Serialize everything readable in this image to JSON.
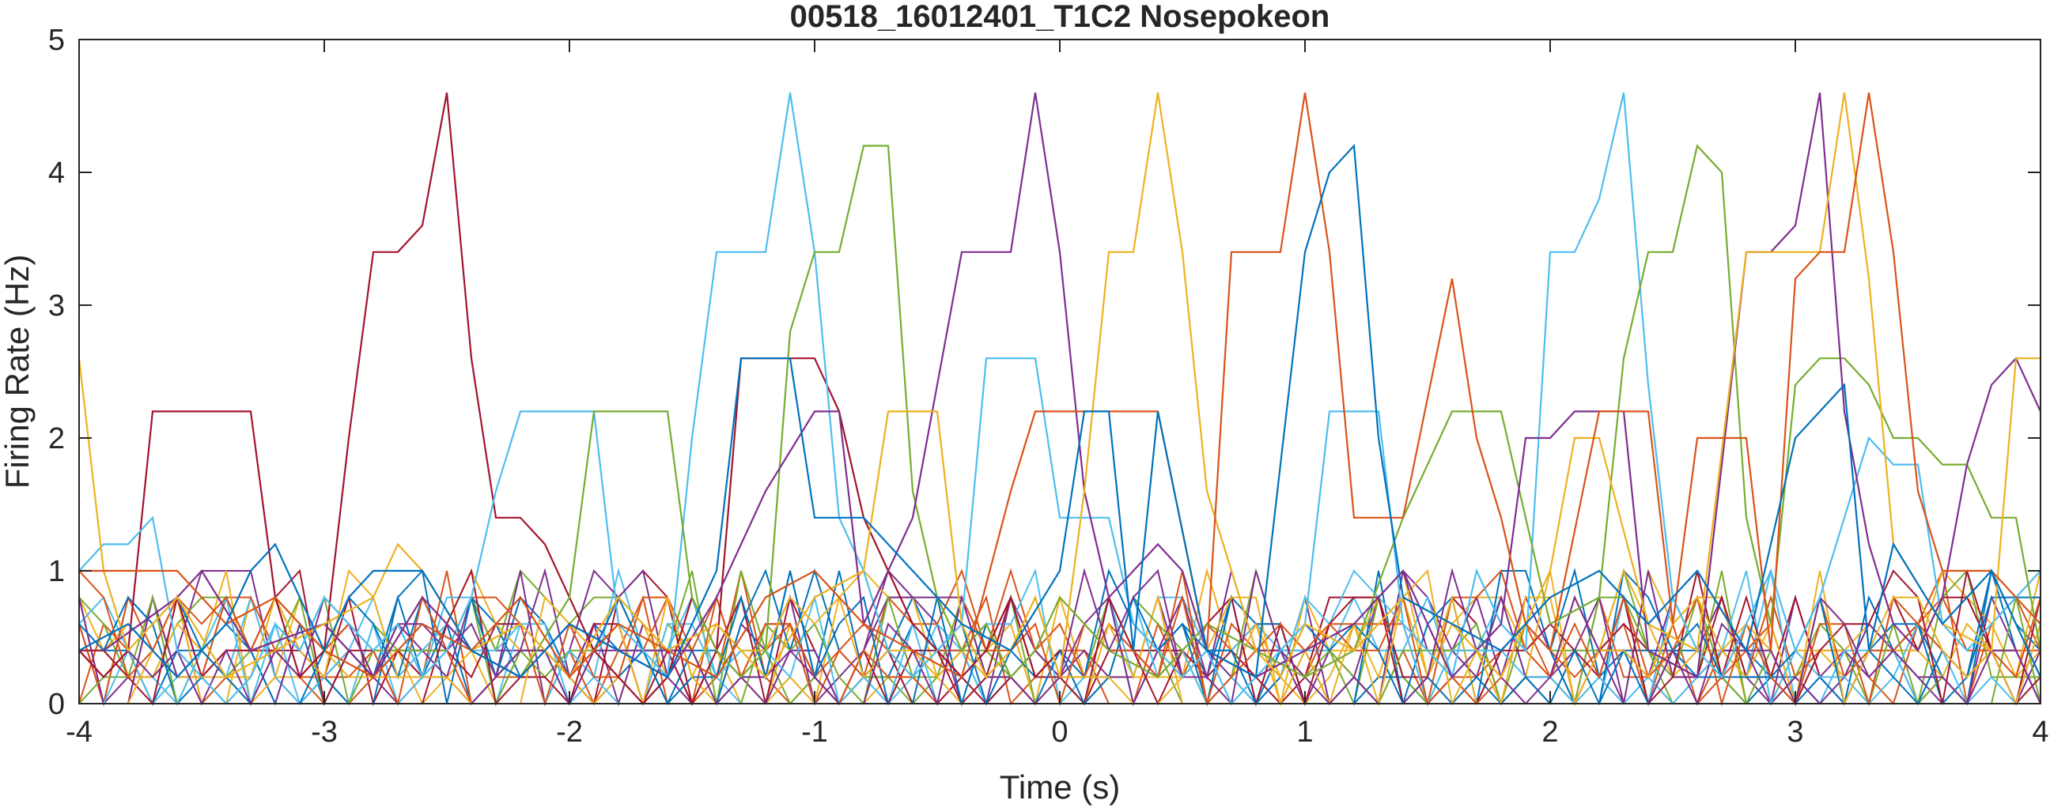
{
  "chart_data": {
    "type": "line",
    "title": "00518_16012401_T1C2 Nosepokeon",
    "xlabel": "Time (s)",
    "ylabel": "Firing Rate (Hz)",
    "xlim": [
      -4,
      4
    ],
    "ylim": [
      0,
      5
    ],
    "xticks": [
      "-4",
      "-3",
      "-2",
      "-1",
      "0",
      "1",
      "2",
      "3",
      "4"
    ],
    "yticks": [
      "0",
      "1",
      "2",
      "3",
      "4",
      "5"
    ],
    "grid": false,
    "legend": "none",
    "colors": [
      "#0072BD",
      "#D95319",
      "#EDB120",
      "#7E2F8E",
      "#77AC30",
      "#4DBEEE",
      "#A2142F"
    ],
    "series": [
      {
        "color": "#A2142F",
        "x": [
          -4,
          -3.9,
          -3.8,
          -3.7,
          -3.6,
          -3.5,
          -3.4,
          -3.3,
          -3.2,
          -3.1,
          -3.0,
          -2.9,
          -2.8,
          -2.7,
          -2.6,
          -2.5,
          -2.4,
          -2.3,
          -2.2,
          -2.1,
          -2.0,
          -1.9,
          -1.8,
          -1.7,
          -1.6,
          -1.5,
          -1.4,
          -1.3,
          -1.2,
          -1.1,
          -1.0,
          -0.9,
          -0.8,
          -0.7,
          -0.6,
          -0.5,
          -0.4,
          -0.3,
          -0.2,
          -0.1,
          0.0
        ],
        "y": [
          0.4,
          0.2,
          0.4,
          2.2,
          2.2,
          2.2,
          2.2,
          2.2,
          0.8,
          0.2,
          0.4,
          2.0,
          3.4,
          3.4,
          3.6,
          4.6,
          2.6,
          1.4,
          1.4,
          1.2,
          0.8,
          0.4,
          0.2,
          0.0,
          0.2,
          0.8,
          0.4,
          2.6,
          2.6,
          2.6,
          2.6,
          2.2,
          1.4,
          1.0,
          0.6,
          0.4,
          0.2,
          0.4,
          0.8,
          0.2,
          0.4
        ]
      },
      {
        "color": "#4DBEEE",
        "x": [
          -4,
          -3.9,
          -3.8,
          -3.7,
          -3.6,
          -3.5,
          -3.4,
          -3.3,
          -3.2,
          -3.1,
          -3.0,
          -2.9,
          -2.8,
          -2.7,
          -2.6,
          -2.5,
          -2.4,
          -2.3,
          -2.2,
          -2.1,
          -2.0,
          -1.9,
          -1.8,
          -1.7,
          -1.6,
          -1.5,
          -1.4,
          -1.3,
          -1.2,
          -1.1,
          -1.0,
          -0.9,
          -0.8,
          -0.7,
          -0.6,
          -0.5,
          -0.4,
          -0.3,
          -0.2,
          -0.1,
          0.0,
          0.1,
          0.2,
          0.3,
          0.4,
          0.5,
          0.6,
          0.7,
          0.8,
          0.9,
          1.0,
          1.1,
          1.2,
          1.3,
          1.4,
          1.5,
          1.6,
          1.7,
          1.8,
          1.9,
          2.0,
          2.1,
          2.2,
          2.3,
          2.4,
          2.5,
          2.6,
          2.7,
          2.8,
          2.9,
          3.0,
          3.1,
          3.2,
          3.3,
          3.4,
          3.5,
          3.6,
          3.7,
          3.8,
          3.9,
          4.0
        ],
        "y": [
          1.0,
          1.2,
          1.2,
          1.4,
          0.4,
          0.2,
          0.0,
          0.2,
          0.6,
          0.4,
          0.8,
          0.6,
          0.4,
          0.6,
          0.2,
          0.4,
          0.8,
          1.6,
          2.2,
          2.2,
          2.2,
          2.2,
          0.6,
          0.4,
          0.2,
          2.0,
          3.4,
          3.4,
          3.4,
          4.6,
          3.4,
          1.4,
          1.0,
          0.4,
          0.2,
          0.4,
          0.6,
          2.6,
          2.6,
          2.6,
          1.4,
          1.4,
          1.4,
          0.6,
          0.4,
          0.2,
          0.4,
          0.0,
          0.2,
          0.4,
          0.6,
          2.2,
          2.2,
          2.2,
          0.6,
          0.4,
          0.2,
          1.0,
          0.6,
          0.4,
          3.4,
          3.4,
          3.8,
          4.6,
          2.4,
          0.8,
          0.4,
          0.2,
          0.6,
          1.0,
          0.4,
          0.8,
          1.4,
          2.0,
          1.8,
          1.8,
          0.6,
          0.4,
          0.6,
          0.8,
          1.0
        ]
      },
      {
        "color": "#77AC30",
        "x": [
          -2.4,
          -2.2,
          -2.0,
          -1.9,
          -1.8,
          -1.7,
          -1.6,
          -1.5,
          -1.4,
          -1.3,
          -1.2,
          -1.1,
          -1.0,
          -0.9,
          -0.8,
          -0.7,
          -0.6,
          -0.5,
          -0.4,
          -0.3,
          -0.2,
          -0.1,
          0.0,
          0.2,
          0.4,
          0.6,
          0.8,
          1.0,
          1.2,
          1.4,
          1.6,
          1.8,
          2.0,
          2.2,
          2.3,
          2.4,
          2.5,
          2.6,
          2.7,
          2.8,
          2.9,
          3.0,
          3.1,
          3.2,
          3.3,
          3.4,
          3.5,
          3.6,
          3.7,
          3.8,
          3.9,
          4.0
        ],
        "y": [
          0.4,
          0.2,
          0.8,
          2.2,
          2.2,
          2.2,
          2.2,
          0.8,
          0.4,
          0.2,
          0.4,
          2.8,
          3.4,
          3.4,
          4.2,
          4.2,
          1.6,
          0.8,
          0.4,
          0.6,
          0.2,
          0.4,
          0.8,
          0.4,
          0.2,
          0.6,
          0.4,
          0.2,
          0.4,
          1.4,
          2.2,
          2.2,
          0.6,
          0.8,
          2.6,
          3.4,
          3.4,
          4.2,
          4.0,
          1.4,
          0.6,
          2.4,
          2.6,
          2.6,
          2.4,
          2.0,
          2.0,
          1.8,
          1.8,
          1.4,
          1.4,
          0.4
        ]
      },
      {
        "color": "#7E2F8E",
        "x": [
          -3.9,
          -3.6,
          -3.5,
          -3.3,
          -3.0,
          -2.8,
          -2.6,
          -2.4,
          -2.2,
          -2.0,
          -1.8,
          -1.6,
          -1.4,
          -1.2,
          -1.0,
          -0.9,
          -0.8,
          -0.6,
          -0.4,
          -0.3,
          -0.2,
          -0.1,
          0.0,
          0.1,
          0.2,
          0.3,
          0.4,
          0.5,
          0.6,
          0.8,
          1.0,
          1.2,
          1.4,
          1.6,
          1.7,
          1.8,
          1.9,
          2.0,
          2.1,
          2.2,
          2.3,
          2.4,
          2.6,
          2.8,
          2.9,
          3.0,
          3.1,
          3.2,
          3.3,
          3.4,
          3.5,
          3.6,
          3.7,
          3.8,
          3.9,
          4.0
        ],
        "y": [
          0.4,
          0.8,
          1.0,
          0.4,
          0.6,
          0.2,
          0.8,
          0.4,
          0.2,
          0.6,
          0.4,
          0.2,
          0.8,
          1.6,
          2.2,
          2.2,
          0.6,
          1.4,
          3.4,
          3.4,
          3.4,
          4.6,
          3.4,
          1.6,
          0.8,
          1.0,
          1.2,
          1.0,
          0.4,
          0.2,
          0.4,
          0.6,
          1.0,
          0.2,
          0.4,
          0.6,
          2.0,
          2.0,
          2.2,
          2.2,
          2.2,
          0.4,
          0.2,
          3.4,
          3.4,
          3.6,
          4.6,
          2.2,
          1.2,
          0.6,
          0.4,
          0.8,
          1.8,
          2.4,
          2.6,
          2.2
        ]
      },
      {
        "color": "#EDB120",
        "x": [
          -4,
          -3.9,
          -3.8,
          -3.6,
          -3.4,
          -3.2,
          -3.0,
          -2.8,
          -2.7,
          -2.6,
          -2.4,
          -2.2,
          -2.0,
          -1.8,
          -1.6,
          -1.4,
          -1.2,
          -1.0,
          -0.8,
          -0.7,
          -0.6,
          -0.5,
          -0.4,
          -0.3,
          -0.2,
          -0.1,
          0.0,
          0.1,
          0.2,
          0.3,
          0.4,
          0.5,
          0.6,
          0.7,
          0.8,
          0.9,
          1.0,
          1.2,
          1.4,
          1.6,
          1.8,
          2.0,
          2.1,
          2.2,
          2.4,
          2.6,
          2.8,
          3.0,
          3.1,
          3.2,
          3.3,
          3.4,
          3.6,
          3.8,
          3.9,
          4.0
        ],
        "y": [
          2.6,
          1.0,
          0.4,
          0.8,
          0.2,
          0.4,
          0.6,
          0.8,
          1.2,
          1.0,
          0.4,
          0.6,
          0.2,
          0.8,
          0.4,
          0.6,
          0.2,
          0.8,
          1.0,
          2.2,
          2.2,
          2.2,
          0.6,
          0.2,
          0.4,
          0.8,
          0.2,
          1.6,
          3.4,
          3.4,
          4.6,
          3.4,
          1.6,
          1.0,
          0.4,
          0.2,
          0.6,
          0.4,
          0.8,
          0.6,
          0.2,
          1.0,
          2.0,
          2.0,
          0.6,
          0.4,
          3.4,
          3.4,
          3.4,
          4.6,
          3.2,
          1.2,
          0.6,
          0.4,
          2.6,
          2.6
        ]
      },
      {
        "color": "#D95319",
        "x": [
          -4,
          -3.8,
          -3.6,
          -3.4,
          -3.2,
          -3.0,
          -2.8,
          -2.6,
          -2.4,
          -2.2,
          -2.0,
          -1.8,
          -1.6,
          -1.4,
          -1.2,
          -1.0,
          -0.8,
          -0.6,
          -0.4,
          -0.2,
          -0.1,
          0.0,
          0.2,
          0.4,
          0.6,
          0.7,
          0.8,
          0.9,
          1.0,
          1.1,
          1.2,
          1.4,
          1.6,
          1.7,
          1.8,
          1.9,
          2.0,
          2.2,
          2.4,
          2.5,
          2.6,
          2.8,
          2.9,
          3.0,
          3.1,
          3.2,
          3.3,
          3.4,
          3.5,
          3.6,
          3.8,
          4.0
        ],
        "y": [
          1.0,
          1.0,
          1.0,
          0.6,
          0.8,
          0.4,
          0.2,
          0.6,
          0.4,
          0.8,
          0.2,
          0.6,
          0.4,
          0.2,
          0.8,
          1.0,
          0.6,
          0.4,
          0.2,
          1.6,
          2.2,
          2.2,
          2.2,
          2.2,
          0.4,
          3.4,
          3.4,
          3.4,
          4.6,
          3.4,
          1.4,
          1.4,
          3.2,
          2.0,
          1.4,
          0.6,
          0.4,
          2.2,
          2.2,
          0.6,
          2.0,
          2.0,
          0.4,
          3.2,
          3.4,
          3.4,
          4.6,
          3.4,
          1.6,
          1.0,
          1.0,
          0.6
        ]
      },
      {
        "color": "#0072BD",
        "x": [
          -4,
          -3.8,
          -3.6,
          -3.4,
          -3.3,
          -3.2,
          -3.0,
          -2.9,
          -2.8,
          -2.6,
          -2.4,
          -2.2,
          -2.0,
          -1.8,
          -1.6,
          -1.4,
          -1.3,
          -1.2,
          -1.1,
          -1.0,
          -0.9,
          -0.8,
          -0.6,
          -0.4,
          -0.2,
          0.0,
          0.1,
          0.2,
          0.3,
          0.4,
          0.6,
          0.8,
          1.0,
          1.1,
          1.2,
          1.3,
          1.4,
          1.6,
          1.8,
          2.0,
          2.2,
          2.4,
          2.6,
          2.8,
          3.0,
          3.2,
          3.3,
          3.4,
          3.6,
          3.8,
          4.0
        ],
        "y": [
          0.4,
          0.6,
          0.2,
          0.6,
          1.0,
          1.2,
          0.4,
          0.8,
          1.0,
          1.0,
          0.4,
          0.2,
          0.6,
          0.4,
          0.2,
          1.0,
          2.6,
          2.6,
          2.6,
          1.4,
          1.4,
          1.4,
          1.0,
          0.6,
          0.4,
          1.0,
          2.2,
          2.2,
          0.4,
          2.2,
          0.4,
          0.2,
          3.4,
          4.0,
          4.2,
          2.0,
          0.8,
          0.6,
          0.4,
          0.8,
          1.0,
          0.6,
          1.0,
          0.4,
          2.0,
          2.4,
          0.4,
          1.2,
          0.6,
          1.0,
          0.2
        ]
      }
    ],
    "noise_series_count": 18
  }
}
